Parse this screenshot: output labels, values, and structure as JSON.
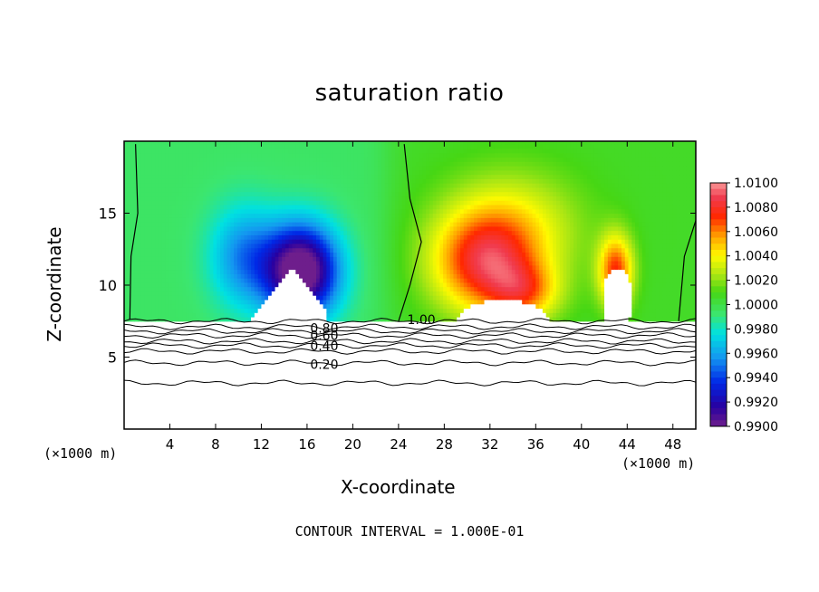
{
  "chart_data": {
    "type": "heatmap",
    "title": "saturation ratio",
    "xlabel": "X-coordinate",
    "ylabel": "Z-coordinate",
    "x_unit": "(×1000 m)",
    "x_unit_right": "(×1000 m)",
    "footer": "CONTOUR INTERVAL = 1.000E-01",
    "xlim": [
      0,
      50
    ],
    "ylim": [
      0,
      20
    ],
    "x_ticks": [
      "4",
      "8",
      "12",
      "16",
      "20",
      "24",
      "28",
      "32",
      "36",
      "40",
      "44",
      "48"
    ],
    "x_tick_values": [
      4,
      8,
      12,
      16,
      20,
      24,
      28,
      32,
      36,
      40,
      44,
      48
    ],
    "y_ticks": [
      "5",
      "10",
      "15"
    ],
    "y_tick_values": [
      5,
      10,
      15
    ],
    "colorbar": {
      "labels": [
        "1.0100",
        "1.0080",
        "1.0060",
        "1.0040",
        "1.0020",
        "1.0000",
        "0.9980",
        "0.9960",
        "0.9940",
        "0.9920",
        "0.9900"
      ],
      "min": 0.99,
      "max": 1.01
    },
    "contour_labels": [
      {
        "text": "1.00",
        "x": 26.0,
        "y": 7.6
      },
      {
        "text": "0.80",
        "x": 17.5,
        "y": 7.0
      },
      {
        "text": "0.60",
        "x": 17.5,
        "y": 6.5
      },
      {
        "text": "0.40",
        "x": 17.5,
        "y": 5.8
      },
      {
        "text": "0.20",
        "x": 17.5,
        "y": 4.5
      }
    ],
    "contour_levels_z": [
      7.5,
      7.1,
      6.8,
      6.5,
      6.1,
      5.8,
      5.4,
      4.6,
      3.2
    ],
    "cloud_base_z": 7.5,
    "features": [
      {
        "kind": "dry",
        "x": 15.5,
        "z": 11.0,
        "amplitude": -0.011,
        "sx": 3.2,
        "sz": 3.2
      },
      {
        "kind": "dry",
        "x": 10.5,
        "z": 12.0,
        "amplitude": -0.004,
        "sx": 3.0,
        "sz": 3.5
      },
      {
        "kind": "moist",
        "x": 31.5,
        "z": 11.5,
        "amplitude": 0.0065,
        "sx": 4.5,
        "sz": 3.5
      },
      {
        "kind": "moist",
        "x": 35.0,
        "z": 9.5,
        "amplitude": 0.004,
        "sx": 3.0,
        "sz": 2.0
      },
      {
        "kind": "moist",
        "x": 43.0,
        "z": 11.0,
        "amplitude": 0.0065,
        "sx": 1.5,
        "sz": 2.5
      },
      {
        "kind": "moist",
        "x": 34.0,
        "z": 14.0,
        "amplitude": 0.003,
        "sx": 6.0,
        "sz": 4.0
      }
    ]
  }
}
